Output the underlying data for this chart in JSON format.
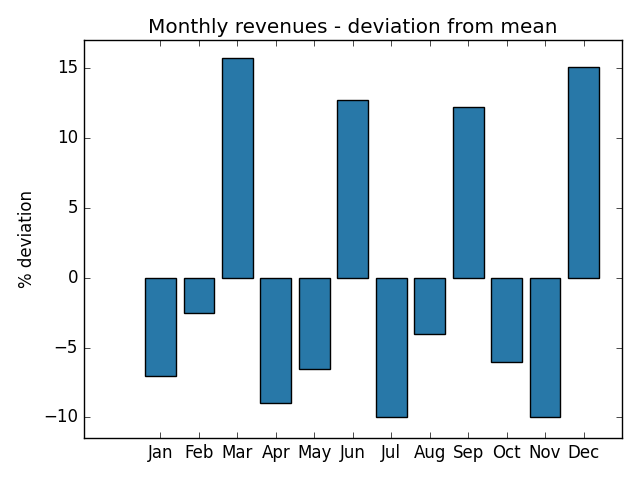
{
  "months": [
    "Jan",
    "Feb",
    "Mar",
    "Apr",
    "May",
    "Jun",
    "Jul",
    "Aug",
    "Sep",
    "Oct",
    "Nov",
    "Dec"
  ],
  "values": [
    -7.0,
    -2.5,
    15.7,
    -9.0,
    -6.5,
    12.7,
    -10.0,
    -4.0,
    12.2,
    -6.0,
    -10.0,
    15.1
  ],
  "bar_color": "#2878a8",
  "title": "Monthly revenues - deviation from mean",
  "ylabel": "% deviation",
  "ylim": [
    -11.5,
    17
  ],
  "yticks": [
    -10,
    -5,
    0,
    5,
    10,
    15
  ]
}
